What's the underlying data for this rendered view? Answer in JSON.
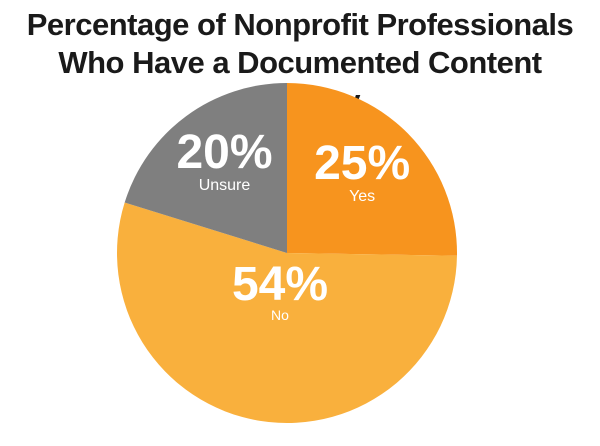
{
  "chart_data": {
    "type": "pie",
    "title": [
      "Percentage of Nonprofit Professionals",
      "Who Have a Documented Content Strategy"
    ],
    "slices": [
      {
        "label": "Yes",
        "value": 25,
        "display": "25%",
        "color": "#f7941e"
      },
      {
        "label": "No",
        "value": 54,
        "display": "54%",
        "color": "#f9b03d"
      },
      {
        "label": "Unsure",
        "value": 20,
        "display": "20%",
        "color": "#7f7f7f"
      }
    ]
  }
}
